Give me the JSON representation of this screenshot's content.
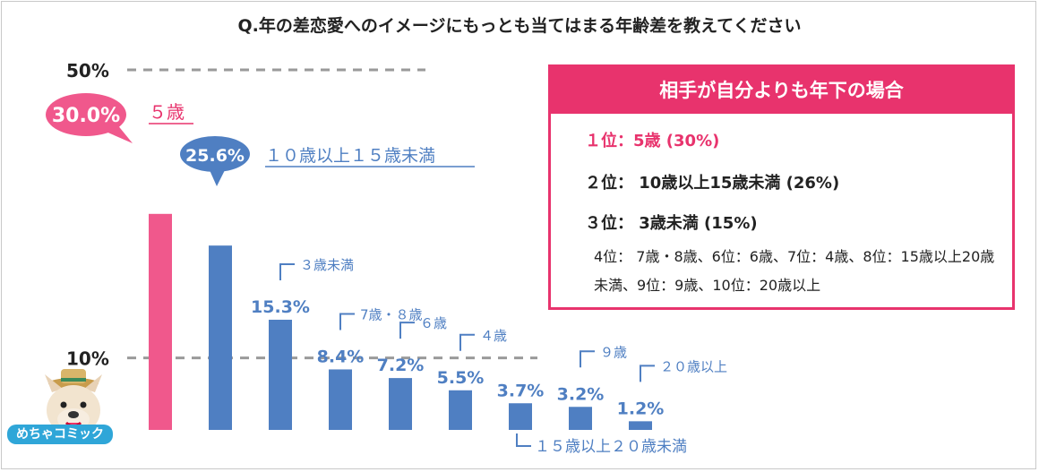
{
  "chart_data": {
    "type": "bar",
    "title": "Q.年の差恋愛へのイメージにもっとも当てはまる年齢差を教えてください",
    "ylim": [
      0,
      50
    ],
    "gridlines": [
      {
        "value": 50,
        "label": "50%"
      },
      {
        "value": 10,
        "label": "10%"
      }
    ],
    "categories": [
      "５歳",
      "１０歳以上１５歳未満",
      "３歳未満",
      "7歳・８歳",
      "６歳",
      "４歳",
      "１５歳以上２０歳未満",
      "９歳",
      "２０歳以上"
    ],
    "values": [
      30.0,
      25.6,
      15.3,
      8.4,
      7.2,
      5.5,
      3.7,
      3.2,
      1.2
    ],
    "value_labels": [
      "30.0%",
      "25.6%",
      "15.3%",
      "8.4%",
      "7.2%",
      "5.5%",
      "3.7%",
      "3.2%",
      "1.2%"
    ],
    "colors": [
      "#f0588c",
      "#4f7fc2",
      "#4f7fc2",
      "#4f7fc2",
      "#4f7fc2",
      "#4f7fc2",
      "#4f7fc2",
      "#4f7fc2",
      "#4f7fc2"
    ]
  },
  "legend": {
    "header": "相手が自分よりも年下の場合",
    "rank1": "１位：5歳 (30%)",
    "rank2": "２位： 10歳以上15歳未満 (26%)",
    "rank3": "３位： 3歳未満 (15%)",
    "rank_other": "4位： 7歳・8歳、6位：6歳、7位：4歳、8位：15歳以上20歳未満、9位：9歳、10位：20歳以上"
  },
  "logo": {
    "text": "めちゃコミック"
  },
  "colors": {
    "accent_pink": "#e8336d",
    "bar_blue": "#4f7fc2",
    "bar_pink": "#f0588c"
  }
}
